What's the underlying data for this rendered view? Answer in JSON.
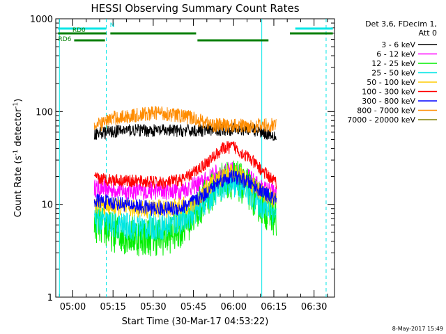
{
  "chart_data": {
    "type": "line",
    "title": "HESSI Observing Summary Count Rates",
    "xlabel": "Start Time (30-Mar-17 04:53:22)",
    "ylabel_base": "Count Rate (s",
    "ylabel_sup1": "-1",
    "ylabel_mid": " detector",
    "ylabel_sup2": "-1",
    "ylabel_end": ")",
    "y_scale": "log",
    "ylim": [
      1,
      1000
    ],
    "xlim_minutes": [
      -6.37,
      97.63
    ],
    "y_ticks": [
      {
        "v": 1,
        "label": "1"
      },
      {
        "v": 10,
        "label": "10"
      },
      {
        "v": 100,
        "label": "100"
      },
      {
        "v": 1000,
        "label": "1000"
      }
    ],
    "x_ticks": [
      {
        "m": 0,
        "label": "05:00"
      },
      {
        "m": 15,
        "label": "05:15"
      },
      {
        "m": 30,
        "label": "05:30"
      },
      {
        "m": 45,
        "label": "05:45"
      },
      {
        "m": 60,
        "label": "06:00"
      },
      {
        "m": 75,
        "label": "06:15"
      },
      {
        "m": 90,
        "label": "06:30"
      }
    ],
    "legend_header": [
      "Det 3,6, FDecim 1,",
      "Att 0"
    ],
    "legend_position": "right",
    "flags": [
      {
        "label": "N",
        "color": "#00e6e6",
        "segments": [
          [
            -5.5,
            12.5
          ],
          [
            83.0,
            97.0
          ]
        ]
      },
      {
        "label": "RD0",
        "color": "#007f00",
        "segments": [
          [
            -5.5,
            12.5
          ],
          [
            14.0,
            46.0
          ],
          [
            81.0,
            97.0
          ]
        ]
      },
      {
        "label": "RD6",
        "color": "#007f00",
        "segments": [
          [
            0.5,
            12.0
          ],
          [
            46.5,
            73.0
          ]
        ]
      }
    ],
    "vlines": [
      {
        "m": -5.0,
        "style": "solid",
        "color": "#00e6e6"
      },
      {
        "m": 12.5,
        "style": "dashed",
        "color": "#00e6e6"
      },
      {
        "m": 70.5,
        "style": "solid",
        "color": "#00e6e6"
      },
      {
        "m": 94.5,
        "style": "dashed",
        "color": "#00e6e6"
      }
    ],
    "series": [
      {
        "name": "3 - 6 keV",
        "color": "#000000",
        "noise": 0.07,
        "points": [
          [
            8,
            58
          ],
          [
            20,
            63
          ],
          [
            35,
            62
          ],
          [
            45,
            62
          ],
          [
            55,
            64
          ],
          [
            65,
            65
          ],
          [
            70,
            61
          ],
          [
            76,
            55
          ]
        ]
      },
      {
        "name": "6 - 12 keV",
        "color": "#ff00ff",
        "noise": 0.1,
        "points": [
          [
            8,
            15
          ],
          [
            20,
            14
          ],
          [
            30,
            14
          ],
          [
            40,
            14
          ],
          [
            48,
            17
          ],
          [
            54,
            22
          ],
          [
            60,
            23
          ],
          [
            66,
            19
          ],
          [
            70,
            15
          ],
          [
            76,
            13
          ]
        ]
      },
      {
        "name": "12 - 25 keV",
        "color": "#00ee00",
        "noise": 0.22,
        "points": [
          [
            8,
            6.5
          ],
          [
            15,
            5.0
          ],
          [
            25,
            4.5
          ],
          [
            35,
            4.6
          ],
          [
            42,
            6.0
          ],
          [
            50,
            12
          ],
          [
            56,
            18
          ],
          [
            60,
            19
          ],
          [
            65,
            15
          ],
          [
            70,
            10
          ],
          [
            76,
            7
          ]
        ]
      },
      {
        "name": "25 - 50 keV",
        "color": "#00e6e6",
        "noise": 0.15,
        "points": [
          [
            8,
            7.0
          ],
          [
            15,
            6.0
          ],
          [
            25,
            5.6
          ],
          [
            35,
            5.8
          ],
          [
            42,
            7.0
          ],
          [
            50,
            11
          ],
          [
            56,
            16
          ],
          [
            60,
            17
          ],
          [
            65,
            14
          ],
          [
            70,
            10
          ],
          [
            76,
            8
          ]
        ]
      },
      {
        "name": "50 - 100 keV",
        "color": "#ffcc00",
        "noise": 0.1,
        "points": [
          [
            8,
            10
          ],
          [
            20,
            9
          ],
          [
            35,
            9
          ],
          [
            45,
            10
          ],
          [
            52,
            17
          ],
          [
            58,
            22
          ],
          [
            62,
            21
          ],
          [
            68,
            15
          ],
          [
            76,
            11
          ]
        ]
      },
      {
        "name": "100 - 300 keV",
        "color": "#ff0000",
        "noise": 0.07,
        "points": [
          [
            8,
            19
          ],
          [
            20,
            18
          ],
          [
            35,
            17
          ],
          [
            42,
            19
          ],
          [
            50,
            28
          ],
          [
            56,
            40
          ],
          [
            60,
            42
          ],
          [
            66,
            31
          ],
          [
            70,
            24
          ],
          [
            76,
            17
          ]
        ]
      },
      {
        "name": "300 - 800 keV",
        "color": "#0000ff",
        "noise": 0.08,
        "points": [
          [
            8,
            11
          ],
          [
            20,
            10
          ],
          [
            30,
            9
          ],
          [
            40,
            9
          ],
          [
            48,
            12
          ],
          [
            55,
            18
          ],
          [
            60,
            20
          ],
          [
            66,
            17
          ],
          [
            70,
            14
          ],
          [
            76,
            11
          ]
        ]
      },
      {
        "name": "800 - 7000 keV",
        "color": "#ff8c00",
        "noise": 0.08,
        "points": [
          [
            8,
            68
          ],
          [
            15,
            85
          ],
          [
            25,
            92
          ],
          [
            32,
            98
          ],
          [
            38,
            92
          ],
          [
            45,
            85
          ],
          [
            52,
            72
          ],
          [
            60,
            70
          ],
          [
            68,
            70
          ],
          [
            76,
            72
          ]
        ]
      },
      {
        "name": "7000 - 20000 keV",
        "color": "#808000",
        "noise": 0.05,
        "points": []
      }
    ]
  },
  "footer_timestamp": "8-May-2017 15:49"
}
